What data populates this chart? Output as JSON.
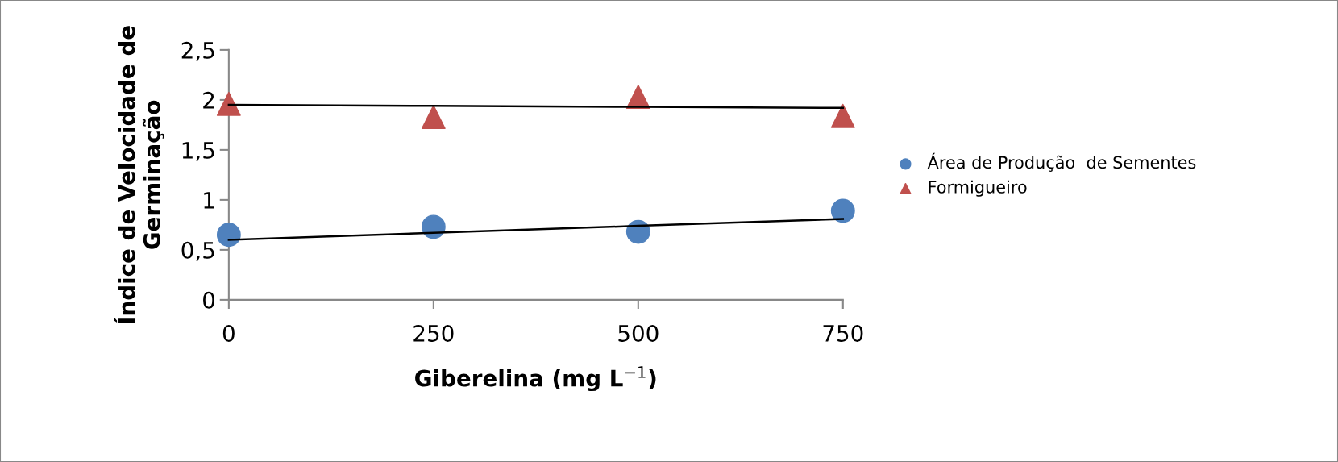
{
  "chart_data": {
    "type": "scatter",
    "xlabel": "Giberelina (mg L$^{−1}$)",
    "ylabel": "Índice de Velocidade de\nGerminação",
    "x": [
      0,
      250,
      500,
      750
    ],
    "series": [
      {
        "name": "Área de Produção  de Sementes",
        "color": "#4f81bd",
        "values": [
          0.65,
          0.73,
          0.68,
          0.89
        ],
        "marker": "circle"
      },
      {
        "name": "Formigueiro",
        "color": "#c0504d",
        "values": [
          1.96,
          1.83,
          2.03,
          1.84
        ],
        "marker": "triangle"
      },
      {
        "type": "line",
        "color": "#000000",
        "values": [
          0.6,
          0.67,
          0.74,
          0.81
        ]
      },
      {
        "type": "line",
        "color": "#000000",
        "values": [
          1.95,
          1.94,
          1.93,
          1.92
        ]
      }
    ],
    "xlim": [
      0,
      750
    ],
    "xticks": [
      0,
      250,
      500,
      750
    ],
    "ylim": [
      0,
      2.5
    ],
    "yticks": [
      0,
      {
        "value": 0.5,
        "label": "0,5"
      },
      1,
      {
        "value": 1.5,
        "label": "1,5"
      },
      2,
      {
        "value": 2.5,
        "label": "2,5"
      }
    ],
    "grid": false,
    "legend": "right"
  }
}
